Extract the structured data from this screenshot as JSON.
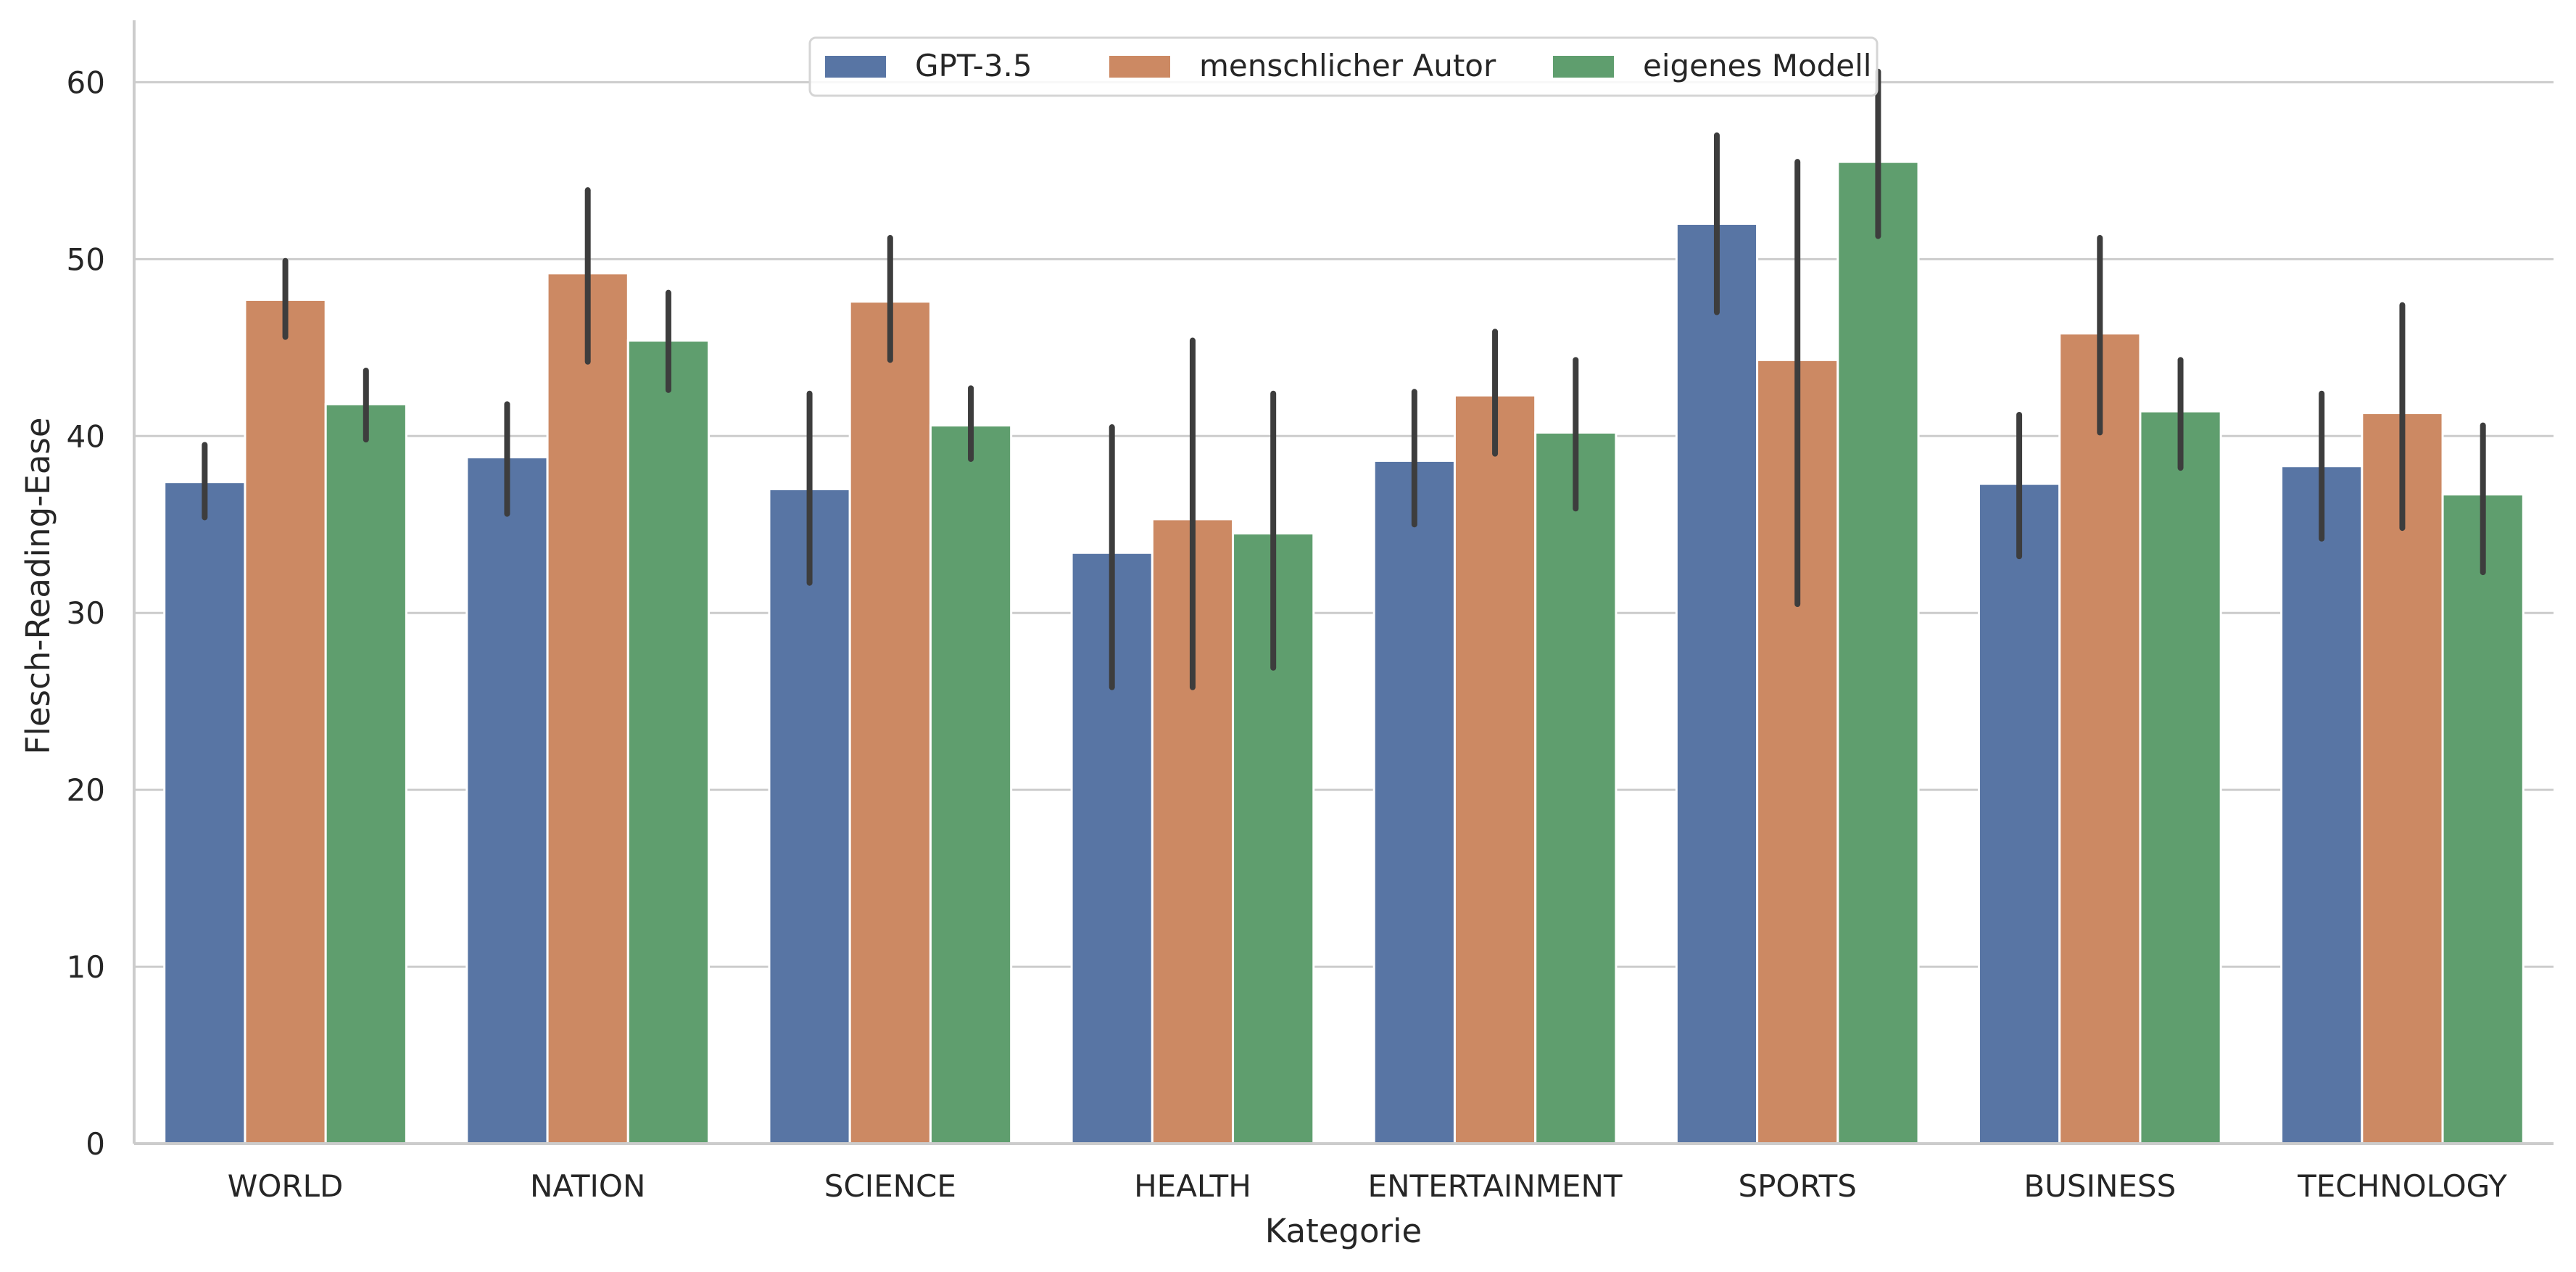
{
  "chart_data": {
    "type": "bar",
    "xlabel": "Kategorie",
    "ylabel": "Flesch-Reading-Ease",
    "ylim": [
      0,
      63.5
    ],
    "yticks": [
      0,
      10,
      20,
      30,
      40,
      50,
      60
    ],
    "grid": "horizontal",
    "legend_position": "top-center",
    "categories": [
      "WORLD",
      "NATION",
      "SCIENCE",
      "HEALTH",
      "ENTERTAINMENT",
      "SPORTS",
      "BUSINESS",
      "TECHNOLOGY"
    ],
    "series": [
      {
        "name": "GPT-3.5",
        "color": "#5875a4",
        "values": [
          37.4,
          38.8,
          37.0,
          33.4,
          38.6,
          52.0,
          37.3,
          38.3
        ],
        "error_low": [
          35.4,
          35.6,
          31.7,
          25.8,
          35.0,
          47.0,
          33.2,
          34.2
        ],
        "error_high": [
          39.5,
          41.8,
          42.4,
          40.5,
          42.5,
          57.0,
          41.2,
          42.4
        ]
      },
      {
        "name": "menschlicher Autor",
        "color": "#cc8963",
        "values": [
          47.7,
          49.2,
          47.6,
          35.3,
          42.3,
          44.3,
          45.8,
          41.3
        ],
        "error_low": [
          45.6,
          44.2,
          44.3,
          25.8,
          39.0,
          30.5,
          40.2,
          34.8
        ],
        "error_high": [
          49.9,
          53.9,
          51.2,
          45.4,
          45.9,
          55.5,
          51.2,
          47.4
        ]
      },
      {
        "name": "eigenes Modell",
        "color": "#5f9e6e",
        "values": [
          41.8,
          45.4,
          40.6,
          34.5,
          40.2,
          55.5,
          41.4,
          36.7
        ],
        "error_low": [
          39.8,
          42.6,
          38.7,
          26.9,
          35.9,
          51.3,
          38.2,
          32.3
        ],
        "error_high": [
          43.7,
          48.1,
          42.7,
          42.4,
          44.3,
          60.6,
          44.3,
          40.6
        ]
      }
    ]
  }
}
